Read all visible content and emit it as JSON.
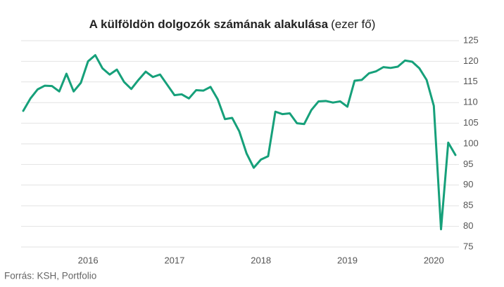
{
  "chart_data": {
    "type": "line",
    "title": "A külföldön dolgozók számának alakulása",
    "unit": "(ezer fő)",
    "source": "Forrás: KSH, Portfolio",
    "categories": [
      null,
      null,
      null,
      null,
      null,
      null,
      null,
      null,
      null,
      "2016",
      null,
      null,
      null,
      null,
      null,
      null,
      null,
      null,
      null,
      null,
      null,
      "2017",
      null,
      null,
      null,
      null,
      null,
      null,
      null,
      null,
      null,
      null,
      null,
      "2018",
      null,
      null,
      null,
      null,
      null,
      null,
      null,
      null,
      null,
      null,
      null,
      "2019",
      null,
      null,
      null,
      null,
      null,
      null,
      null,
      null,
      null,
      null,
      null,
      "2020",
      null,
      null,
      null
    ],
    "series": [
      {
        "color": "#16a07a",
        "values": [
          108,
          111,
          113.2,
          114.1,
          114,
          112.7,
          117,
          112.7,
          114.8,
          120,
          121.5,
          118.3,
          116.8,
          118,
          115,
          113.3,
          115.5,
          117.5,
          116.2,
          116.8,
          114.3,
          111.8,
          112,
          111,
          113,
          112.9,
          113.8,
          110.8,
          106,
          106.3,
          103,
          97.7,
          94.2,
          96.2,
          97,
          107.8,
          107.2,
          107.4,
          105,
          104.8,
          108.2,
          110.3,
          110.4,
          110,
          110.3,
          109,
          115.3,
          115.5,
          117.1,
          117.6,
          118.6,
          118.4,
          118.7,
          120.2,
          119.9,
          118.3,
          115.5,
          109.2,
          79.3,
          100.3,
          97.3
        ]
      }
    ],
    "ylim": [
      75,
      125
    ],
    "yticks": [
      75,
      80,
      85,
      90,
      95,
      100,
      105,
      110,
      115,
      120,
      125
    ],
    "grid": true,
    "yaxis_side": "right"
  }
}
